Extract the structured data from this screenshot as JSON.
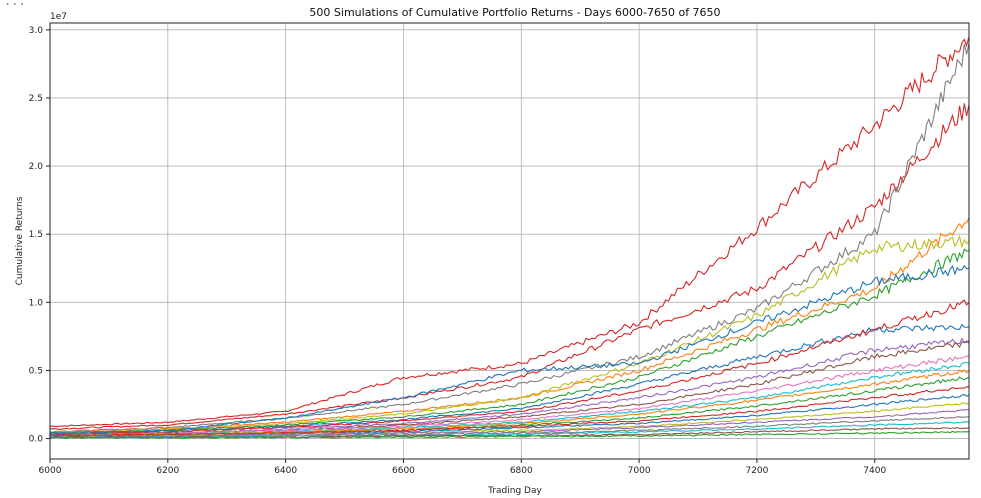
{
  "chart_data": {
    "type": "line",
    "title": "500 Simulations of Cumulative Portfolio Returns - Days 6000-7650 of 7650",
    "xlabel": "Trading Day",
    "ylabel": "Cumulative Returns",
    "y_multiplier": "1e7",
    "xlim": [
      6000,
      7560
    ],
    "ylim": [
      -0.15,
      3.05
    ],
    "grid": true,
    "legend": "none",
    "x_ticks": [
      6000,
      6200,
      6400,
      6600,
      6800,
      7000,
      7200,
      7400
    ],
    "y_ticks": [
      0.0,
      0.5,
      1.0,
      1.5,
      2.0,
      2.5,
      3.0
    ],
    "x_tick_labels": [
      "6000",
      "6200",
      "6400",
      "6600",
      "6800",
      "7000",
      "7200",
      "7400"
    ],
    "y_tick_labels": [
      "0.0",
      "0.5",
      "1.0",
      "1.5",
      "2.0",
      "2.5",
      "3.0"
    ],
    "n_simulations": 500,
    "series": [
      {
        "color": "#d62728",
        "points": [
          [
            6000,
            0.09
          ],
          [
            6200,
            0.12
          ],
          [
            6400,
            0.2
          ],
          [
            6600,
            0.45
          ],
          [
            6800,
            0.55
          ],
          [
            7000,
            0.85
          ],
          [
            7200,
            1.55
          ],
          [
            7400,
            2.3
          ],
          [
            7560,
            2.95
          ]
        ]
      },
      {
        "color": "#d62728",
        "points": [
          [
            6000,
            0.07
          ],
          [
            6200,
            0.1
          ],
          [
            6400,
            0.18
          ],
          [
            6600,
            0.3
          ],
          [
            6800,
            0.45
          ],
          [
            7000,
            0.8
          ],
          [
            7200,
            1.1
          ],
          [
            7400,
            1.7
          ],
          [
            7560,
            2.45
          ]
        ]
      },
      {
        "color": "#7f7f7f",
        "points": [
          [
            6000,
            0.05
          ],
          [
            6200,
            0.08
          ],
          [
            6400,
            0.15
          ],
          [
            6600,
            0.25
          ],
          [
            6800,
            0.4
          ],
          [
            7000,
            0.6
          ],
          [
            7200,
            0.95
          ],
          [
            7400,
            1.5
          ],
          [
            7560,
            2.9
          ]
        ]
      },
      {
        "color": "#ff7f0e",
        "points": [
          [
            6000,
            0.05
          ],
          [
            6200,
            0.07
          ],
          [
            6400,
            0.12
          ],
          [
            6600,
            0.2
          ],
          [
            6800,
            0.3
          ],
          [
            7000,
            0.5
          ],
          [
            7200,
            0.8
          ],
          [
            7400,
            1.1
          ],
          [
            7560,
            1.62
          ]
        ]
      },
      {
        "color": "#bcbd22",
        "points": [
          [
            6000,
            0.04
          ],
          [
            6200,
            0.06
          ],
          [
            6400,
            0.11
          ],
          [
            6600,
            0.18
          ],
          [
            6800,
            0.3
          ],
          [
            7000,
            0.55
          ],
          [
            7200,
            0.9
          ],
          [
            7400,
            1.4
          ],
          [
            7560,
            1.45
          ]
        ]
      },
      {
        "color": "#2ca02c",
        "points": [
          [
            6000,
            0.04
          ],
          [
            6200,
            0.06
          ],
          [
            6400,
            0.1
          ],
          [
            6600,
            0.16
          ],
          [
            6800,
            0.25
          ],
          [
            7000,
            0.45
          ],
          [
            7200,
            0.75
          ],
          [
            7400,
            1.05
          ],
          [
            7560,
            1.38
          ]
        ]
      },
      {
        "color": "#1f77b4",
        "points": [
          [
            6000,
            0.04
          ],
          [
            6200,
            0.06
          ],
          [
            6400,
            0.15
          ],
          [
            6600,
            0.3
          ],
          [
            6800,
            0.5
          ],
          [
            7000,
            0.55
          ],
          [
            7200,
            0.85
          ],
          [
            7400,
            1.15
          ],
          [
            7560,
            1.25
          ]
        ]
      },
      {
        "color": "#1f77b4",
        "points": [
          [
            6000,
            0.03
          ],
          [
            6200,
            0.05
          ],
          [
            6400,
            0.09
          ],
          [
            6600,
            0.14
          ],
          [
            6800,
            0.22
          ],
          [
            7000,
            0.4
          ],
          [
            7200,
            0.6
          ],
          [
            7400,
            0.8
          ],
          [
            7560,
            0.82
          ]
        ]
      },
      {
        "color": "#d62728",
        "points": [
          [
            6000,
            0.03
          ],
          [
            6200,
            0.05
          ],
          [
            6400,
            0.08
          ],
          [
            6600,
            0.13
          ],
          [
            6800,
            0.2
          ],
          [
            7000,
            0.35
          ],
          [
            7200,
            0.55
          ],
          [
            7400,
            0.8
          ],
          [
            7560,
            1.0
          ]
        ]
      },
      {
        "color": "#9467bd",
        "points": [
          [
            6000,
            0.03
          ],
          [
            6200,
            0.04
          ],
          [
            6400,
            0.07
          ],
          [
            6600,
            0.11
          ],
          [
            6800,
            0.18
          ],
          [
            7000,
            0.3
          ],
          [
            7200,
            0.45
          ],
          [
            7400,
            0.65
          ],
          [
            7560,
            0.72
          ]
        ]
      },
      {
        "color": "#8c564b",
        "points": [
          [
            6000,
            0.03
          ],
          [
            6200,
            0.04
          ],
          [
            6400,
            0.06
          ],
          [
            6600,
            0.1
          ],
          [
            6800,
            0.16
          ],
          [
            7000,
            0.25
          ],
          [
            7200,
            0.4
          ],
          [
            7400,
            0.6
          ],
          [
            7560,
            0.7
          ]
        ]
      },
      {
        "color": "#e377c2",
        "points": [
          [
            6000,
            0.02
          ],
          [
            6200,
            0.04
          ],
          [
            6400,
            0.06
          ],
          [
            6600,
            0.09
          ],
          [
            6800,
            0.14
          ],
          [
            7000,
            0.22
          ],
          [
            7200,
            0.35
          ],
          [
            7400,
            0.5
          ],
          [
            7560,
            0.6
          ]
        ]
      },
      {
        "color": "#17becf",
        "points": [
          [
            6000,
            0.02
          ],
          [
            6200,
            0.03
          ],
          [
            6400,
            0.05
          ],
          [
            6600,
            0.08
          ],
          [
            6800,
            0.12
          ],
          [
            7000,
            0.2
          ],
          [
            7200,
            0.3
          ],
          [
            7400,
            0.45
          ],
          [
            7560,
            0.55
          ]
        ]
      },
      {
        "color": "#ff7f0e",
        "points": [
          [
            6000,
            0.02
          ],
          [
            6200,
            0.03
          ],
          [
            6400,
            0.05
          ],
          [
            6600,
            0.07
          ],
          [
            6800,
            0.11
          ],
          [
            7000,
            0.18
          ],
          [
            7200,
            0.28
          ],
          [
            7400,
            0.4
          ],
          [
            7560,
            0.5
          ]
        ]
      },
      {
        "color": "#2ca02c",
        "points": [
          [
            6000,
            0.02
          ],
          [
            6200,
            0.03
          ],
          [
            6400,
            0.04
          ],
          [
            6600,
            0.06
          ],
          [
            6800,
            0.1
          ],
          [
            7000,
            0.15
          ],
          [
            7200,
            0.24
          ],
          [
            7400,
            0.35
          ],
          [
            7560,
            0.45
          ]
        ]
      },
      {
        "color": "#d62728",
        "points": [
          [
            6000,
            0.02
          ],
          [
            6200,
            0.03
          ],
          [
            6400,
            0.04
          ],
          [
            6600,
            0.06
          ],
          [
            6800,
            0.09
          ],
          [
            7000,
            0.13
          ],
          [
            7200,
            0.2
          ],
          [
            7400,
            0.3
          ],
          [
            7560,
            0.38
          ]
        ]
      },
      {
        "color": "#1f77b4",
        "points": [
          [
            6000,
            0.01
          ],
          [
            6200,
            0.02
          ],
          [
            6400,
            0.03
          ],
          [
            6600,
            0.05
          ],
          [
            6800,
            0.08
          ],
          [
            7000,
            0.11
          ],
          [
            7200,
            0.17
          ],
          [
            7400,
            0.25
          ],
          [
            7560,
            0.32
          ]
        ]
      },
      {
        "color": "#bcbd22",
        "points": [
          [
            6000,
            0.01
          ],
          [
            6200,
            0.02
          ],
          [
            6400,
            0.03
          ],
          [
            6600,
            0.04
          ],
          [
            6800,
            0.06
          ],
          [
            7000,
            0.09
          ],
          [
            7200,
            0.14
          ],
          [
            7400,
            0.2
          ],
          [
            7560,
            0.26
          ]
        ]
      },
      {
        "color": "#9467bd",
        "points": [
          [
            6000,
            0.01
          ],
          [
            6200,
            0.02
          ],
          [
            6400,
            0.03
          ],
          [
            6600,
            0.04
          ],
          [
            6800,
            0.05
          ],
          [
            7000,
            0.08
          ],
          [
            7200,
            0.12
          ],
          [
            7400,
            0.16
          ],
          [
            7560,
            0.21
          ]
        ]
      },
      {
        "color": "#7f7f7f",
        "points": [
          [
            6000,
            0.01
          ],
          [
            6200,
            0.01
          ],
          [
            6400,
            0.02
          ],
          [
            6600,
            0.03
          ],
          [
            6800,
            0.04
          ],
          [
            7000,
            0.06
          ],
          [
            7200,
            0.09
          ],
          [
            7400,
            0.13
          ],
          [
            7560,
            0.16
          ]
        ]
      },
      {
        "color": "#17becf",
        "points": [
          [
            6000,
            0.01
          ],
          [
            6200,
            0.01
          ],
          [
            6400,
            0.02
          ],
          [
            6600,
            0.02
          ],
          [
            6800,
            0.03
          ],
          [
            7000,
            0.05
          ],
          [
            7200,
            0.07
          ],
          [
            7400,
            0.1
          ],
          [
            7560,
            0.12
          ]
        ]
      },
      {
        "color": "#8c564b",
        "points": [
          [
            6000,
            0.01
          ],
          [
            6200,
            0.01
          ],
          [
            6400,
            0.01
          ],
          [
            6600,
            0.02
          ],
          [
            6800,
            0.02
          ],
          [
            7000,
            0.03
          ],
          [
            7200,
            0.05
          ],
          [
            7400,
            0.07
          ],
          [
            7560,
            0.08
          ]
        ]
      },
      {
        "color": "#2ca02c",
        "points": [
          [
            6000,
            0.005
          ],
          [
            6200,
            0.006
          ],
          [
            6400,
            0.008
          ],
          [
            6600,
            0.01
          ],
          [
            6800,
            0.015
          ],
          [
            7000,
            0.02
          ],
          [
            7200,
            0.03
          ],
          [
            7400,
            0.04
          ],
          [
            7560,
            0.05
          ]
        ]
      }
    ]
  },
  "cell_marker": "..."
}
